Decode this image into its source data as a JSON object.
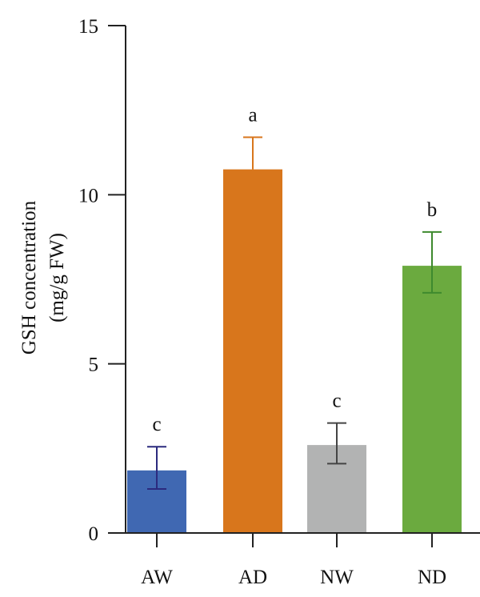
{
  "chart_data": {
    "type": "bar",
    "ylabel_line1": "GSH concentration",
    "ylabel_line2": "(mg/g FW)",
    "xlabel": "",
    "ylim": [
      0,
      15
    ],
    "yticks": [
      0,
      5,
      10,
      15
    ],
    "categories": [
      "AW",
      "AD",
      "NW",
      "ND"
    ],
    "values": [
      1.85,
      10.75,
      2.6,
      7.9
    ],
    "error_upper": [
      2.55,
      11.7,
      3.25,
      8.9
    ],
    "error_lower": [
      1.3,
      10.75,
      2.05,
      7.1
    ],
    "significance": [
      "c",
      "a",
      "c",
      "b"
    ],
    "colors": [
      "#4068B2",
      "#D8761C",
      "#B2B3B3",
      "#6BAA3F"
    ],
    "error_colors": [
      "#2B2A7E",
      "#D8761C",
      "#444444",
      "#3E8A2E"
    ],
    "grid": false,
    "legend": "none"
  }
}
